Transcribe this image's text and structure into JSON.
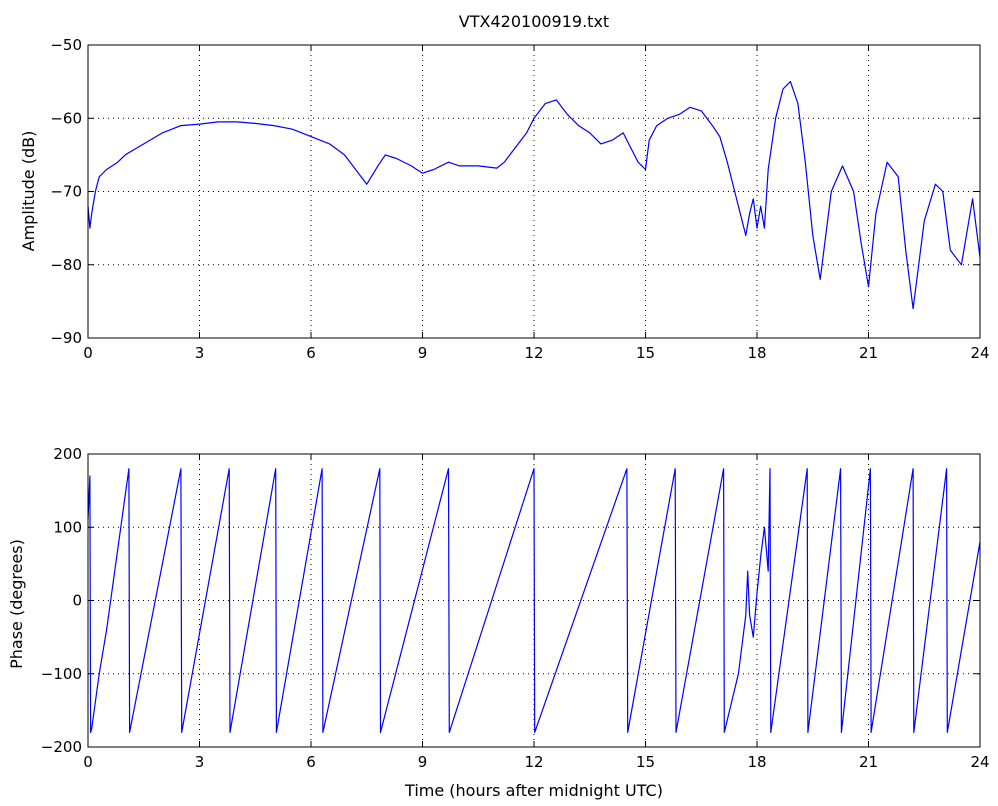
{
  "chart_data": [
    {
      "type": "line",
      "title": "VTX420100919.txt",
      "xlabel": "",
      "ylabel": "Amplitude (dB)",
      "xlim": [
        0,
        24
      ],
      "ylim": [
        -90,
        -50
      ],
      "xticks": [
        "0",
        "3",
        "6",
        "9",
        "12",
        "15",
        "18",
        "21",
        "24"
      ],
      "yticks": [
        "-90",
        "-80",
        "-70",
        "-60",
        "-50"
      ],
      "grid": true,
      "color": "#0000ff",
      "series": [
        {
          "x": [
            0.0,
            0.05,
            0.1,
            0.2,
            0.3,
            0.5,
            0.8,
            1.0,
            1.5,
            2.0,
            2.5,
            3.0,
            3.5,
            4.0,
            4.5,
            5.0,
            5.5,
            6.0,
            6.5,
            6.9,
            7.2,
            7.5,
            7.8,
            8.0,
            8.3,
            8.7,
            9.0,
            9.3,
            9.7,
            10.0,
            10.5,
            11.0,
            11.2,
            11.5,
            11.8,
            12.0,
            12.3,
            12.6,
            12.9,
            13.2,
            13.5,
            13.8,
            14.1,
            14.4,
            14.6,
            14.8,
            15.0,
            15.1,
            15.3,
            15.6,
            15.9,
            16.2,
            16.5,
            16.8,
            17.0,
            17.2,
            17.4,
            17.6,
            17.7,
            17.8,
            17.9,
            18.0,
            18.1,
            18.2,
            18.3,
            18.5,
            18.7,
            18.9,
            19.1,
            19.3,
            19.5,
            19.7,
            19.8,
            20.0,
            20.3,
            20.6,
            20.8,
            21.0,
            21.2,
            21.5,
            21.8,
            22.0,
            22.2,
            22.5,
            22.8,
            23.0,
            23.2,
            23.5,
            23.8,
            24.0
          ],
          "y": [
            -72,
            -75,
            -73,
            -70,
            -68,
            -67,
            -66,
            -65,
            -63.5,
            -62,
            -61,
            -60.8,
            -60.5,
            -60.5,
            -60.7,
            -61,
            -61.5,
            -62.5,
            -63.5,
            -65,
            -67,
            -69,
            -66.5,
            -65,
            -65.5,
            -66.5,
            -67.5,
            -67,
            -66,
            -66.5,
            -66.5,
            -66.8,
            -66,
            -64,
            -62,
            -60,
            -58,
            -57.5,
            -59.5,
            -61,
            -62,
            -63.5,
            -63,
            -62,
            -64,
            -66,
            -67,
            -63,
            -61,
            -60,
            -59.5,
            -58.5,
            -59,
            -61,
            -62.5,
            -66,
            -70,
            -74,
            -76,
            -73,
            -71,
            -75,
            -72,
            -75,
            -67,
            -60,
            -56,
            -55,
            -58,
            -66,
            -76,
            -82,
            -78,
            -70,
            -66.5,
            -70,
            -77,
            -83,
            -73,
            -66,
            -68,
            -78,
            -86,
            -74,
            -69,
            -70,
            -78,
            -80,
            -71,
            -79
          ]
        }
      ]
    },
    {
      "type": "line",
      "title": "",
      "xlabel": "Time (hours after midnight UTC)",
      "ylabel": "Phase (degrees)",
      "xlim": [
        0,
        24
      ],
      "ylim": [
        -200,
        200
      ],
      "xticks": [
        "0",
        "3",
        "6",
        "9",
        "12",
        "15",
        "18",
        "21",
        "24"
      ],
      "yticks": [
        "-200",
        "-100",
        "0",
        "100",
        "200"
      ],
      "grid": true,
      "color": "#0000ff",
      "series": [
        {
          "x": [
            0.0,
            0.05,
            0.07,
            0.1,
            0.3,
            0.5,
            1.1,
            1.12,
            2.5,
            2.52,
            3.8,
            3.82,
            5.05,
            5.07,
            6.3,
            6.32,
            7.85,
            7.87,
            9.7,
            9.72,
            12.0,
            12.02,
            14.5,
            14.52,
            15.8,
            15.82,
            17.1,
            17.12,
            17.5,
            17.6,
            17.7,
            17.75,
            17.8,
            17.9,
            18.0,
            18.1,
            18.2,
            18.3,
            18.35,
            18.37,
            19.35,
            19.37,
            20.25,
            20.27,
            21.05,
            21.07,
            22.2,
            22.22,
            23.1,
            23.12,
            24.0
          ],
          "y": [
            110,
            170,
            -180,
            -175,
            -100,
            -40,
            180,
            -180,
            180,
            -180,
            180,
            -180,
            180,
            -180,
            180,
            -180,
            180,
            -180,
            180,
            -180,
            180,
            -180,
            180,
            -180,
            180,
            -180,
            180,
            -180,
            -100,
            -60,
            -20,
            40,
            -20,
            -50,
            10,
            60,
            100,
            40,
            180,
            -180,
            180,
            -180,
            180,
            -180,
            180,
            -180,
            180,
            -180,
            180,
            -180,
            80
          ]
        }
      ]
    }
  ]
}
